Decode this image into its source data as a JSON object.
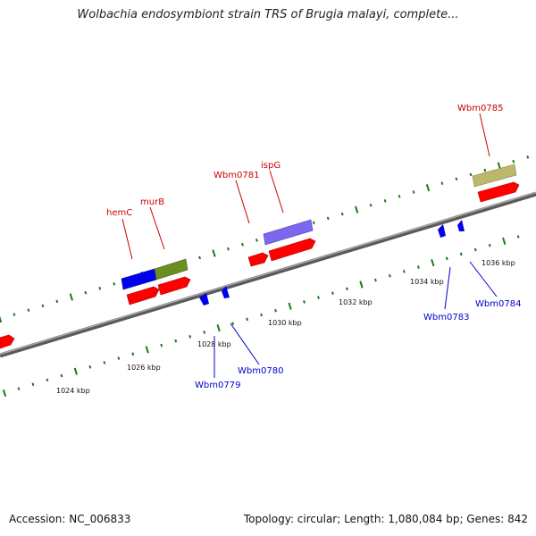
{
  "title": "Wolbachia endosymbiont strain TRS of Brugia malayi, complete...",
  "footer": {
    "accession": "Accession: NC_006833",
    "stats": "Topology: circular; Length: 1,080,084 bp; Genes: 842"
  },
  "colors": {
    "backbone": "#808080",
    "cds": "#ff0000",
    "blue_feature": "#0000ee",
    "olive_feature": "#6b8e23",
    "slate_feature": "#7b68ee",
    "khaki_feature": "#bdb76b",
    "tick": "#1a7a1a",
    "forward_label": "#cc0000",
    "reverse_label": "#0000cc"
  },
  "axis": {
    "unit": "kbp",
    "tick_labels": [
      "1024 kbp",
      "1026 kbp",
      "1028 kbp",
      "1030 kbp",
      "1032 kbp",
      "1034 kbp",
      "1036 kbp"
    ]
  },
  "forward_labels": [
    "hemC",
    "murB",
    "Wbm0781",
    "ispG",
    "Wbm0785"
  ],
  "reverse_labels": [
    "Wbm0779",
    "Wbm0780",
    "Wbm0783",
    "Wbm0784"
  ]
}
